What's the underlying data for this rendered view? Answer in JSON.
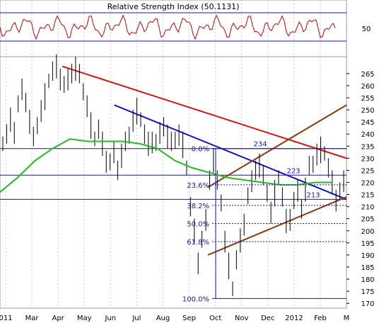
{
  "chart_data": {
    "type": "candlestick",
    "rsi_panel": {
      "title": "Relative Strength Index (50.1131)",
      "level_label": "50",
      "color": "#cc0000"
    },
    "x_tick_labels": [
      "011",
      "Mar",
      "Apr",
      "May",
      "Jun",
      "Jul",
      "Aug",
      "Sep",
      "Oct",
      "Nov",
      "Dec",
      "2012",
      "Feb",
      "M"
    ],
    "y_ticks": [
      170,
      175,
      180,
      185,
      190,
      195,
      200,
      205,
      210,
      215,
      220,
      225,
      230,
      235,
      240,
      245,
      250,
      255,
      260,
      265
    ],
    "ylim": [
      168,
      272
    ],
    "price_series": {
      "color": "#000000",
      "values": [
        236,
        240,
        246,
        242,
        252,
        258,
        254,
        246,
        238,
        244,
        250,
        256,
        262,
        266,
        268,
        264,
        260,
        262,
        266,
        268,
        264,
        258,
        252,
        244,
        238,
        242,
        236,
        230,
        228,
        232,
        226,
        232,
        236,
        240,
        246,
        250,
        246,
        240,
        236,
        238,
        236,
        240,
        244,
        240,
        236,
        238,
        240,
        236,
        226,
        210,
        200,
        188,
        196,
        204,
        222,
        230,
        220,
        212,
        196,
        186,
        176,
        188,
        196,
        204,
        214,
        220,
        226,
        228,
        222,
        216,
        208,
        216,
        222,
        214,
        204,
        206,
        212,
        216,
        210,
        218,
        226,
        228,
        232,
        234,
        232,
        226,
        220,
        214,
        216,
        220
      ]
    },
    "moving_average": {
      "color": "#22bb22",
      "values": [
        216,
        222,
        229,
        234,
        238,
        237,
        237,
        237,
        236,
        234,
        229,
        226,
        224,
        222,
        221,
        220,
        219,
        219,
        220,
        220
      ]
    },
    "fibonacci": {
      "levels": [
        {
          "label": "0.0%",
          "value": 234
        },
        {
          "label": "23.6%",
          "value": 219
        },
        {
          "label": "38.2%",
          "value": 210.5
        },
        {
          "label": "50.0%",
          "value": 203
        },
        {
          "label": "61.8%",
          "value": 195.5
        },
        {
          "label": "100.0%",
          "value": 172
        }
      ]
    },
    "horizontal_levels": [
      234,
      223,
      213
    ],
    "annotations": [
      {
        "label": "234",
        "value": 234
      },
      {
        "label": "223",
        "value": 223
      },
      {
        "label": "213",
        "value": 213
      }
    ],
    "trendlines": [
      {
        "color": "#dd1111",
        "from": [
          0.18,
          268
        ],
        "to": [
          1.0,
          230
        ]
      },
      {
        "color": "#1111cc",
        "from": [
          0.33,
          252
        ],
        "to": [
          1.0,
          213
        ]
      },
      {
        "color": "#8b3a0f",
        "from": [
          0.6,
          190
        ],
        "to": [
          1.0,
          214
        ]
      },
      {
        "color": "#8b3a0f",
        "from": [
          0.6,
          218
        ],
        "to": [
          1.0,
          252
        ]
      }
    ]
  }
}
